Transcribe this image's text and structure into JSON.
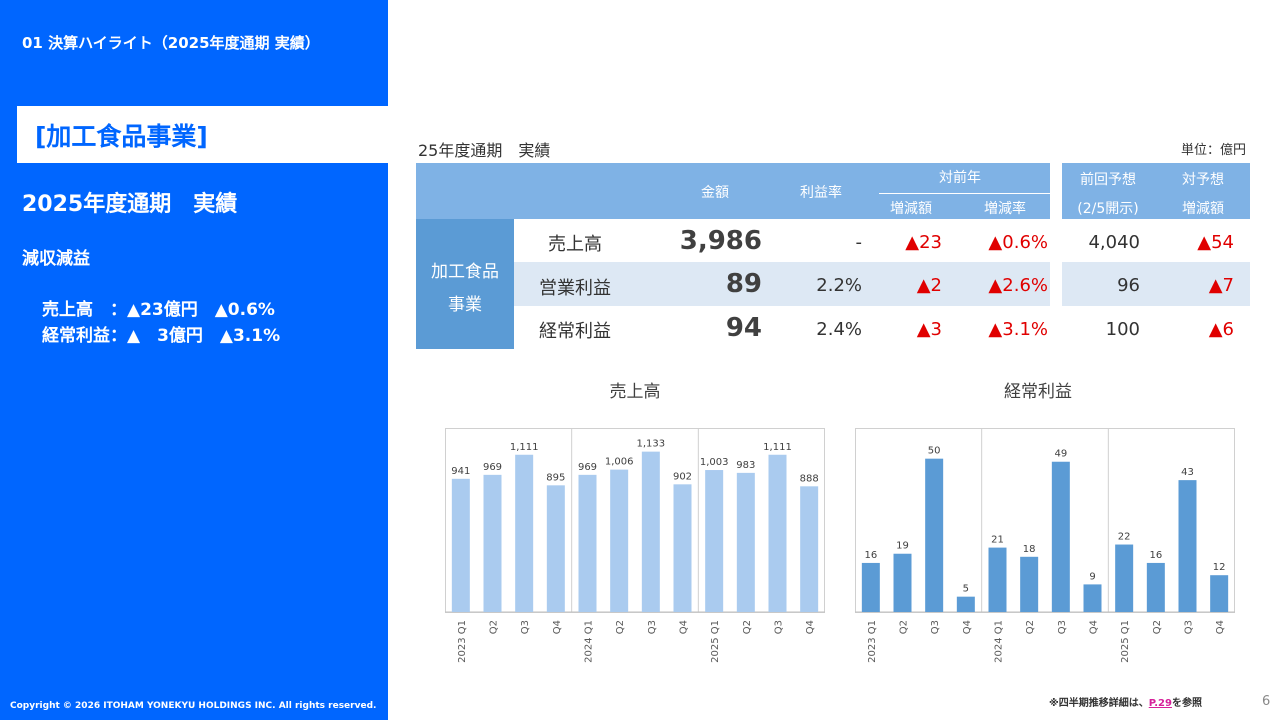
{
  "left_panel": {
    "section_title": "01 決算ハイライト（2025年度通期 実績）",
    "segment_title": "[加工食品事業]",
    "period_title": "2025年度通期　実績",
    "summary_label": "減収減益",
    "summary_lines": [
      "売上高　：▲23億円　▲0.6%",
      "経常利益：▲　3億円　▲3.1%"
    ],
    "copyright": "Copyright © 2026 ITOHAM YONEKYU HOLDINGS INC. All rights reserved."
  },
  "table": {
    "caption": "25年度通期　実績",
    "unit": "単位：億円",
    "headers": {
      "amount": "金額",
      "margin": "利益率",
      "yoy": "対前年",
      "yoy_change": "増減額",
      "yoy_rate": "増減率",
      "prev_forecast": "前回予想",
      "prev_forecast_note": "(2/5開示)",
      "vs_forecast": "対予想",
      "vs_forecast_change": "増減額"
    },
    "segment_label_1": "加工食品",
    "segment_label_2": "事業",
    "rows": [
      {
        "label": "売上高",
        "amount": "3,986",
        "margin": "-",
        "yoy_change": "▲23",
        "yoy_rate": "▲0.6%",
        "forecast": "4,040",
        "forecast_diff": "▲54"
      },
      {
        "label": "営業利益",
        "amount": "89",
        "margin": "2.2%",
        "yoy_change": "▲2",
        "yoy_rate": "▲2.6%",
        "forecast": "96",
        "forecast_diff": "▲7"
      },
      {
        "label": "経常利益",
        "amount": "94",
        "margin": "2.4%",
        "yoy_change": "▲3",
        "yoy_rate": "▲3.1%",
        "forecast": "100",
        "forecast_diff": "▲6"
      }
    ]
  },
  "chart_data": [
    {
      "type": "bar",
      "title": "売上高",
      "categories": [
        "2023 Q1",
        "Q2",
        "Q3",
        "Q4",
        "2024 Q1",
        "Q2",
        "Q3",
        "Q4",
        "2025 Q1",
        "Q2",
        "Q3",
        "Q4"
      ],
      "values": [
        941,
        969,
        1111,
        895,
        969,
        1006,
        1133,
        902,
        1003,
        983,
        1111,
        888
      ],
      "value_labels": [
        "941",
        "969",
        "1,111",
        "895",
        "969",
        "1,006",
        "1,133",
        "902",
        "1,003",
        "983",
        "1,111",
        "888"
      ],
      "ylim": [
        0,
        1300
      ],
      "color": "#aacbef",
      "grid": false,
      "xlabel": "",
      "ylabel": ""
    },
    {
      "type": "bar",
      "title": "経常利益",
      "categories": [
        "2023 Q1",
        "Q2",
        "Q3",
        "Q4",
        "2024 Q1",
        "Q2",
        "Q3",
        "Q4",
        "2025 Q1",
        "Q2",
        "Q3",
        "Q4"
      ],
      "values": [
        16,
        19,
        50,
        5,
        21,
        18,
        49,
        9,
        22,
        16,
        43,
        12
      ],
      "value_labels": [
        "16",
        "19",
        "50",
        "5",
        "21",
        "18",
        "49",
        "9",
        "22",
        "16",
        "43",
        "12"
      ],
      "ylim": [
        0,
        60
      ],
      "color": "#5b9bd5",
      "grid": false,
      "xlabel": "",
      "ylabel": ""
    }
  ],
  "footer": {
    "note_prefix": "※四半期推移詳細は、",
    "note_link": "P.29",
    "note_suffix": "を参照",
    "page_number": "6"
  }
}
